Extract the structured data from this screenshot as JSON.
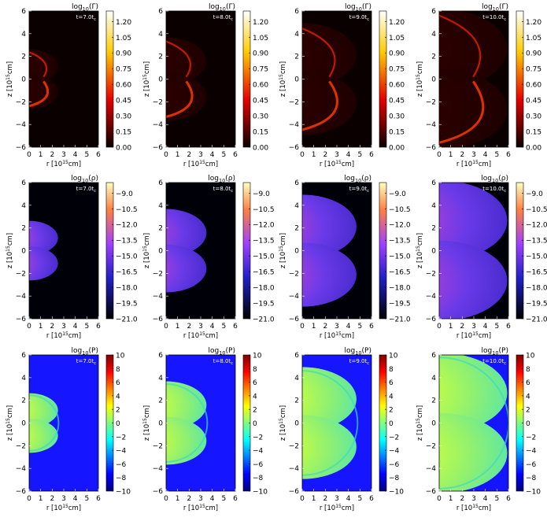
{
  "chart_data": {
    "type": "heatmap",
    "rows": [
      {
        "quantity": "Gamma",
        "title_base": "log",
        "title_sub": "10",
        "title_arg": "(Γ)",
        "colormap": "hot",
        "colorbar_ticks": [
          "1.20",
          "1.05",
          "0.90",
          "0.75",
          "0.60",
          "0.45",
          "0.30",
          "0.15",
          "0.00"
        ],
        "colorbar_range": [
          0.0,
          1.3
        ]
      },
      {
        "quantity": "rho",
        "title_base": "log",
        "title_sub": "10",
        "title_arg": "(ρ)",
        "colormap": "gnuplot2",
        "colorbar_ticks": [
          "−9.0",
          "−10.5",
          "−12.0",
          "−13.5",
          "−15.0",
          "−16.5",
          "−18.0",
          "−19.5",
          "−21.0"
        ],
        "colorbar_range": [
          -21.0,
          -8.0
        ]
      },
      {
        "quantity": "P",
        "title_base": "log",
        "title_sub": "10",
        "title_arg": "(P)",
        "colormap": "jet",
        "colorbar_ticks": [
          "10",
          "8",
          "6",
          "4",
          "2",
          "0",
          "−2",
          "−4",
          "−6",
          "−8",
          "−10"
        ],
        "colorbar_range": [
          -10,
          10
        ]
      }
    ],
    "columns": [
      {
        "time_label": "t=7.0t",
        "time_sub": "c",
        "t": 7.0,
        "shock_radius": 2.5
      },
      {
        "time_label": "t=8.0t",
        "time_sub": "c",
        "t": 8.0,
        "shock_radius": 3.5
      },
      {
        "time_label": "t=9.0t",
        "time_sub": "c",
        "t": 9.0,
        "shock_radius": 4.7
      },
      {
        "time_label": "t=10.0t",
        "time_sub": "c",
        "t": 10.0,
        "shock_radius": 5.9
      }
    ],
    "x_axis": {
      "label_prefix": "r [10",
      "label_exp": "15",
      "label_suffix": "cm]",
      "range": [
        0,
        6
      ],
      "ticks": [
        "0",
        "1",
        "2",
        "3",
        "4",
        "5",
        "6"
      ]
    },
    "y_axis": {
      "label_prefix": "z [10",
      "label_exp": "15",
      "label_suffix": "cm]",
      "range": [
        -6,
        6
      ],
      "ticks": [
        "6",
        "4",
        "2",
        "0",
        "−2",
        "−4",
        "−6"
      ]
    }
  }
}
